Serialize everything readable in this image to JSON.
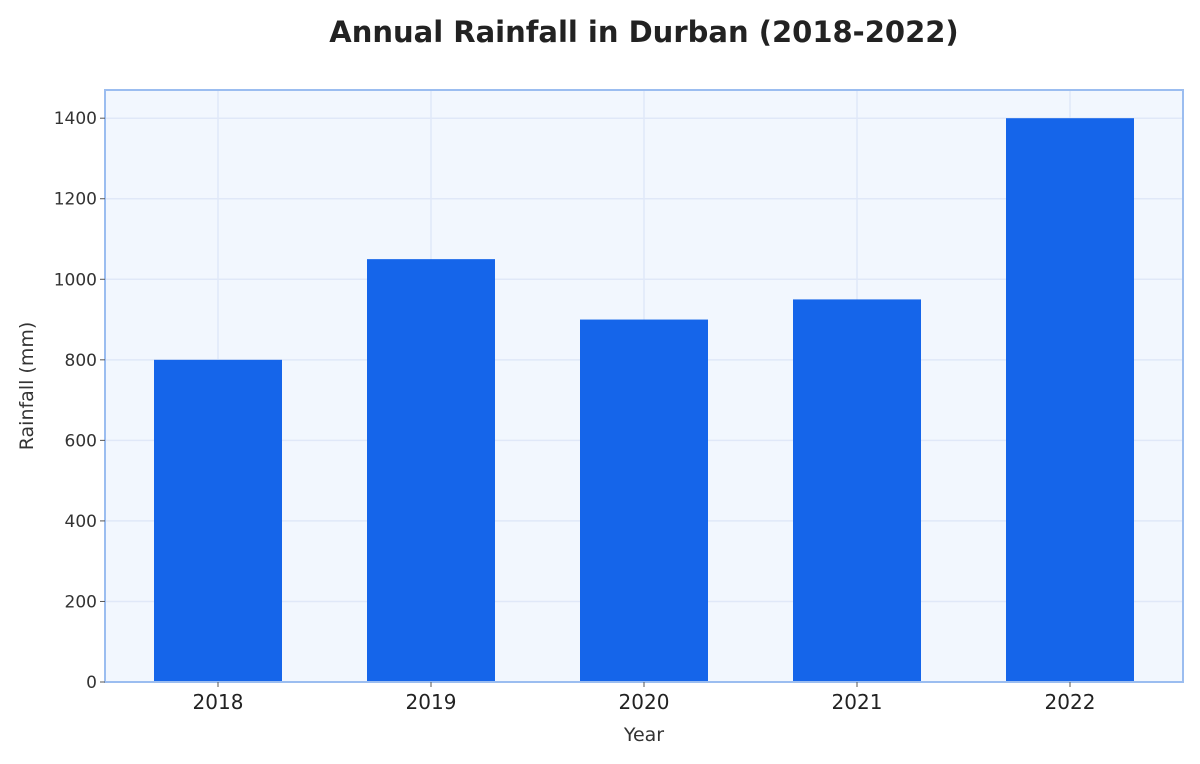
{
  "chart_data": {
    "type": "bar",
    "title": "Annual Rainfall in Durban (2018-2022)",
    "xlabel": "Year",
    "ylabel": "Rainfall (mm)",
    "categories": [
      "2018",
      "2019",
      "2020",
      "2021",
      "2022"
    ],
    "values": [
      800,
      1050,
      900,
      950,
      1400
    ],
    "ylim": [
      0,
      1470
    ],
    "yticks": [
      0,
      200,
      400,
      600,
      800,
      1000,
      1200,
      1400
    ],
    "ytick_labels": [
      "0",
      "200",
      "400",
      "600",
      "800",
      "1000",
      "1200",
      "1400"
    ],
    "grid": true,
    "colors": {
      "bar": "#1565ea",
      "plot_background": "#f2f7fe",
      "plot_border": "#9bbdf0",
      "grid": "#e0e8f8"
    }
  }
}
